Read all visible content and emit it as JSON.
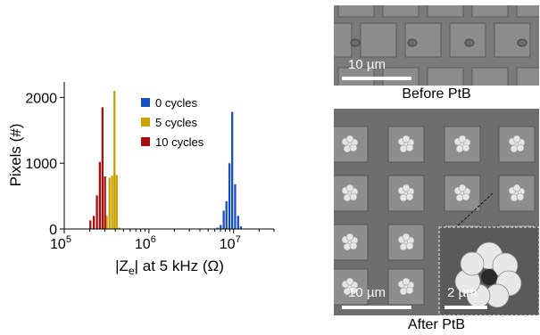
{
  "chart_data": {
    "type": "bar",
    "xlabel_prefix": "|Z",
    "xlabel_sub": "e",
    "xlabel_suffix": "| at 5 kHz (Ω)",
    "ylabel": "Pixels (#)",
    "x_scale": "log",
    "xlim": [
      100000,
      30000000
    ],
    "ylim": [
      0,
      2100
    ],
    "yticks": [
      0,
      1000,
      2000
    ],
    "xticks": [
      {
        "value": 100000,
        "base": "10",
        "exp": "5"
      },
      {
        "value": 1000000,
        "base": "10",
        "exp": "6"
      },
      {
        "value": 10000000,
        "base": "10",
        "exp": "7"
      }
    ],
    "legend_position": "top-right",
    "series": [
      {
        "name": "0 cycles",
        "color": "#1a4fc4",
        "x": [
          6500000,
          7100000,
          7700000,
          8300000,
          9000000,
          9700000,
          10500000,
          11400000,
          12300000
        ],
        "values": [
          20,
          60,
          280,
          420,
          1000,
          1780,
          680,
          200,
          40
        ]
      },
      {
        "name": "5 cycles",
        "color": "#c9a100",
        "x": [
          320000,
          345000,
          370000,
          395000,
          420000,
          450000,
          485000
        ],
        "values": [
          200,
          780,
          810,
          2100,
          820,
          20,
          5
        ]
      },
      {
        "name": "10 cycles",
        "color": "#a50f0f",
        "x": [
          205000,
          225000,
          245000,
          265000,
          285000,
          305000
        ],
        "values": [
          130,
          200,
          510,
          1020,
          1850,
          800
        ]
      }
    ]
  },
  "images": {
    "top_scalebar": "10 µm",
    "top_caption": "Before PtB",
    "bottom_scalebar": "10 µm",
    "inset_scalebar": "2 µm",
    "bottom_caption": "After PtB"
  }
}
